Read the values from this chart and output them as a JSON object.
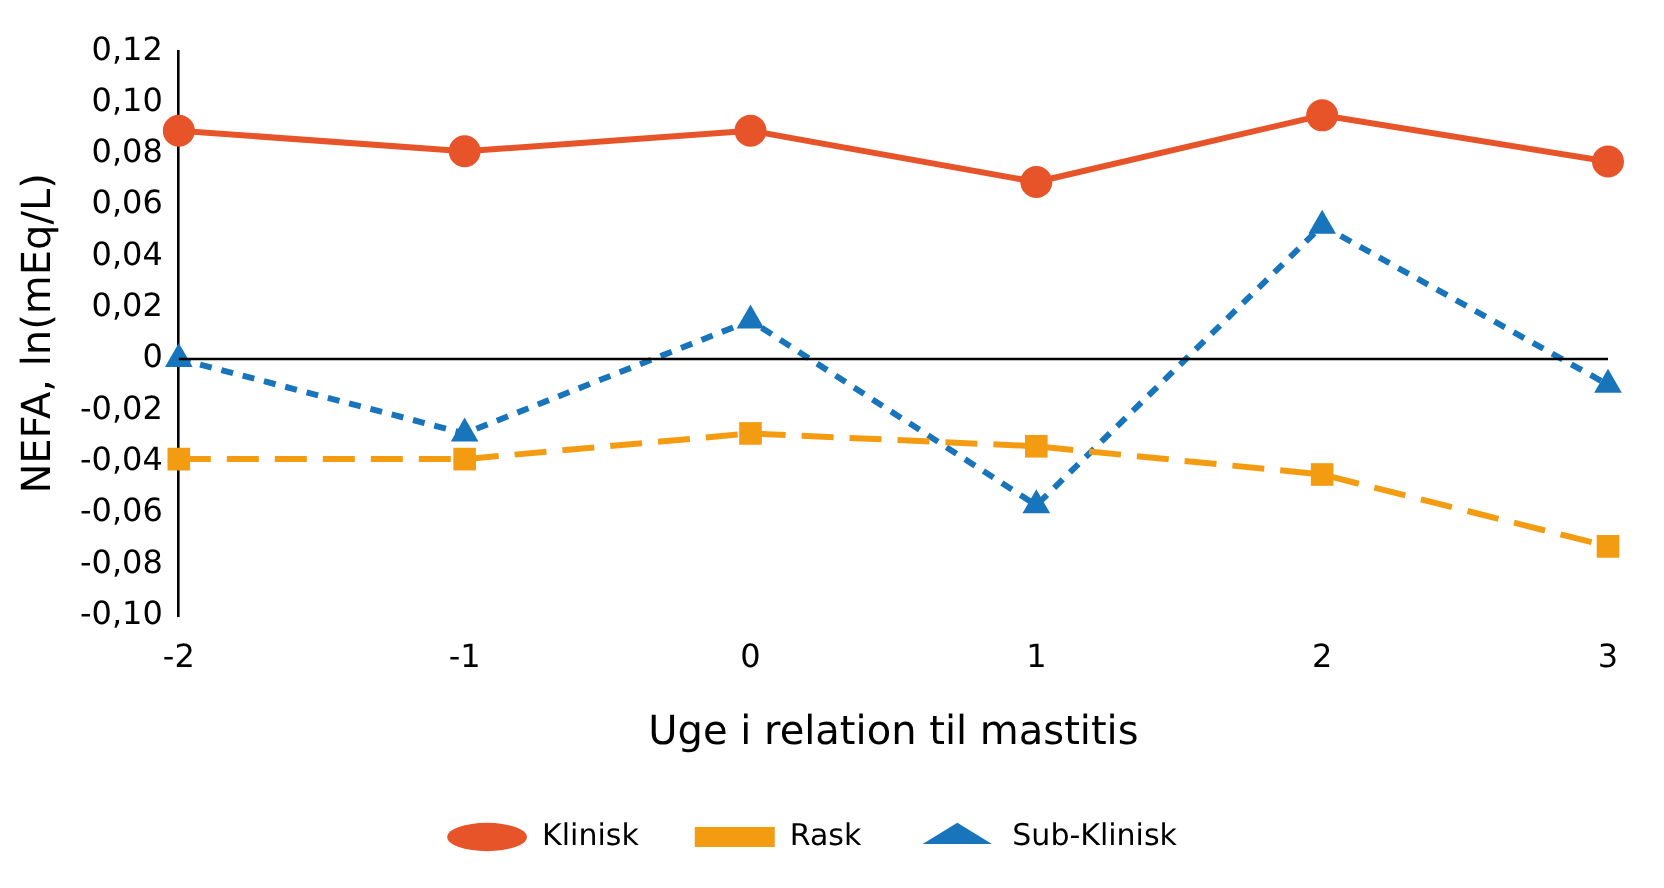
{
  "chart_data": {
    "type": "line",
    "xlabel": "Uge i relation til mastitis",
    "ylabel": "NEFA, ln(mEq/L)",
    "categories": [
      "-2",
      "-1",
      "0",
      "1",
      "2",
      "3"
    ],
    "series": [
      {
        "name": "Klinisk",
        "color": "#e8542a",
        "marker": "circle",
        "line_style": "solid",
        "values": [
          0.089,
          0.081,
          0.089,
          0.069,
          0.095,
          0.077
        ]
      },
      {
        "name": "Rask",
        "color": "#f39c12",
        "marker": "square",
        "line_style": "dashed",
        "values": [
          -0.039,
          -0.039,
          -0.029,
          -0.034,
          -0.045,
          -0.073
        ]
      },
      {
        "name": "Sub-Klinisk",
        "color": "#1874bb",
        "marker": "triangle",
        "line_style": "dotted",
        "values": [
          0.0,
          -0.029,
          0.015,
          -0.057,
          0.052,
          -0.01
        ]
      }
    ],
    "ylim": [
      -0.1,
      0.12
    ],
    "yticks": [
      {
        "value": 0.12,
        "label": "0,12"
      },
      {
        "value": 0.1,
        "label": "0,10"
      },
      {
        "value": 0.08,
        "label": "0,08"
      },
      {
        "value": 0.06,
        "label": "0,06"
      },
      {
        "value": 0.04,
        "label": "0,04"
      },
      {
        "value": 0.02,
        "label": "0,02"
      },
      0,
      {
        "value": -0.02,
        "label": "-0,02"
      },
      {
        "value": -0.04,
        "label": "-0,04"
      },
      {
        "value": -0.06,
        "label": "-0,06"
      },
      {
        "value": -0.08,
        "label": "-0,08"
      },
      {
        "value": -0.1,
        "label": "-0,10"
      }
    ],
    "ref_lines": [
      {
        "axis": "y",
        "value": 0,
        "color": "#000000"
      }
    ],
    "grid": false,
    "legend": "bottom"
  }
}
